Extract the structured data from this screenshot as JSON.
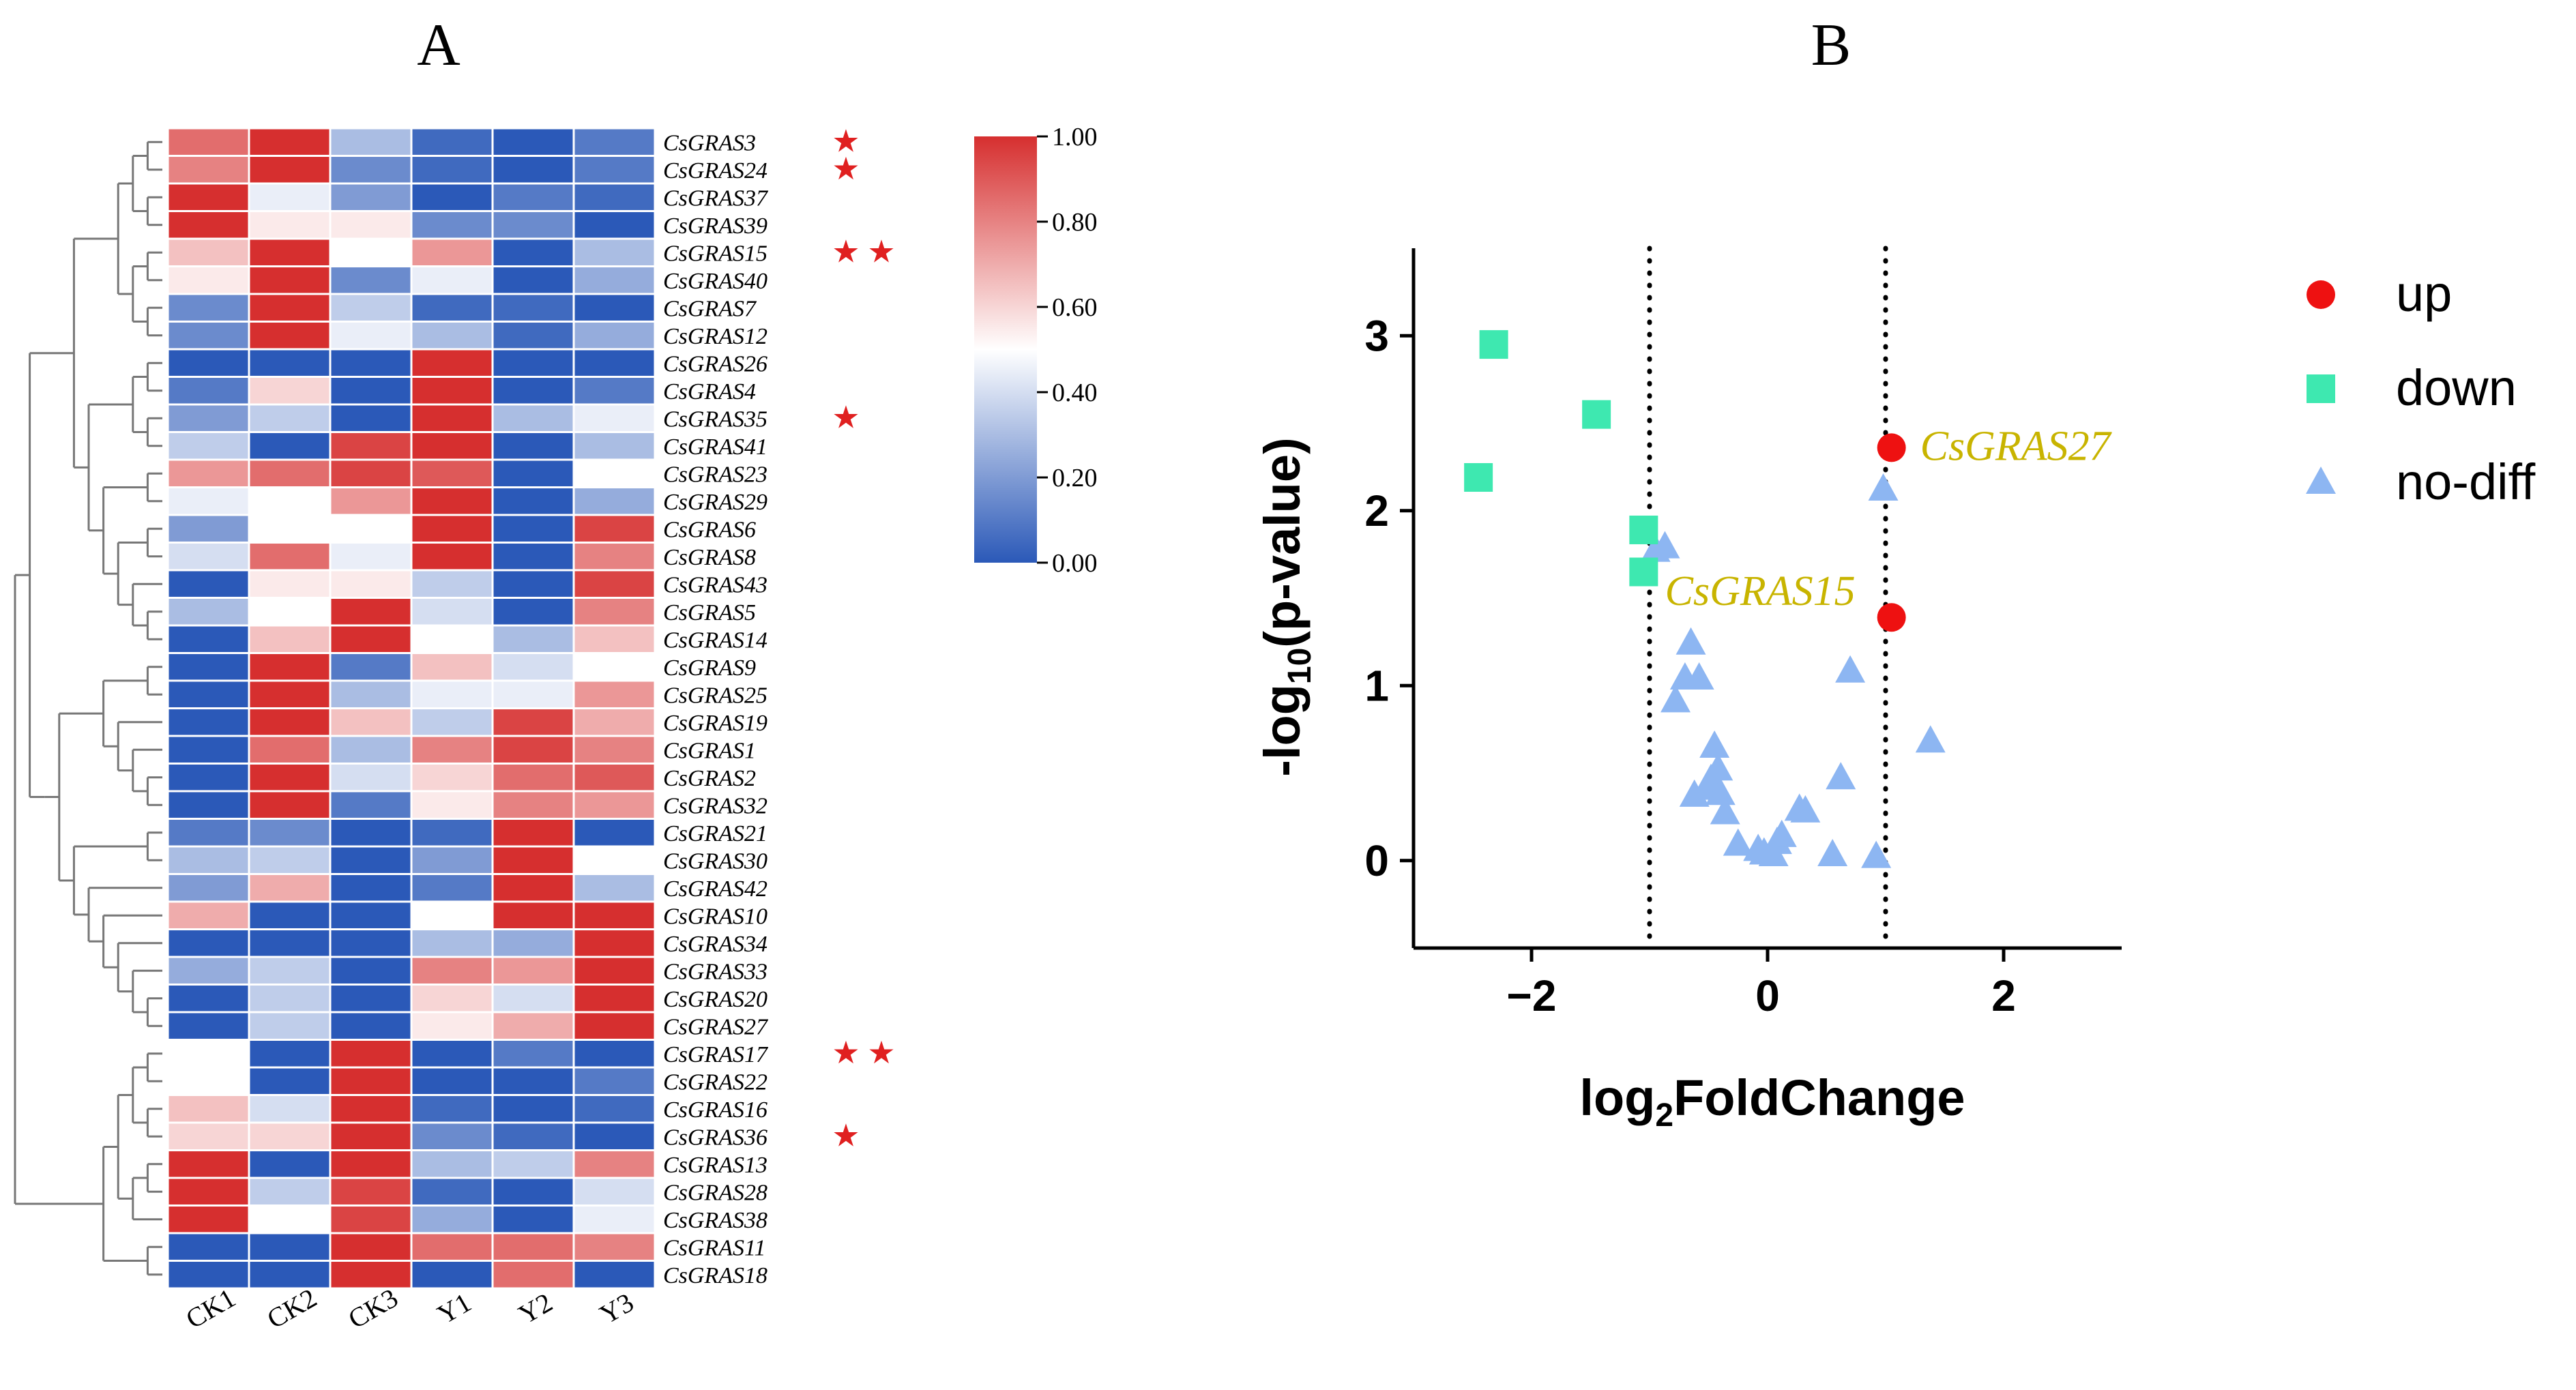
{
  "chart_data": [
    {
      "type": "heatmap",
      "panel_label": "A",
      "columns": [
        "CK1",
        "CK2",
        "CK3",
        "Y1",
        "Y2",
        "Y3"
      ],
      "rows": [
        "CsGRAS3",
        "CsGRAS24",
        "CsGRAS37",
        "CsGRAS39",
        "CsGRAS15",
        "CsGRAS40",
        "CsGRAS7",
        "CsGRAS12",
        "CsGRAS26",
        "CsGRAS4",
        "CsGRAS35",
        "CsGRAS41",
        "CsGRAS23",
        "CsGRAS29",
        "CsGRAS6",
        "CsGRAS8",
        "CsGRAS43",
        "CsGRAS5",
        "CsGRAS14",
        "CsGRAS9",
        "CsGRAS25",
        "CsGRAS19",
        "CsGRAS1",
        "CsGRAS2",
        "CsGRAS32",
        "CsGRAS21",
        "CsGRAS30",
        "CsGRAS42",
        "CsGRAS10",
        "CsGRAS34",
        "CsGRAS33",
        "CsGRAS20",
        "CsGRAS27",
        "CsGRAS17",
        "CsGRAS22",
        "CsGRAS16",
        "CsGRAS36",
        "CsGRAS13",
        "CsGRAS28",
        "CsGRAS38",
        "CsGRAS11",
        "CsGRAS18"
      ],
      "values": [
        [
          0.85,
          1.0,
          0.3,
          0.05,
          0.0,
          0.1
        ],
        [
          0.8,
          1.0,
          0.15,
          0.05,
          0.0,
          0.1
        ],
        [
          1.0,
          0.45,
          0.2,
          0.0,
          0.1,
          0.05
        ],
        [
          1.0,
          0.55,
          0.55,
          0.15,
          0.15,
          0.0
        ],
        [
          0.65,
          1.0,
          0.5,
          0.75,
          0.0,
          0.3
        ],
        [
          0.55,
          1.0,
          0.15,
          0.45,
          0.0,
          0.25
        ],
        [
          0.15,
          1.0,
          0.35,
          0.05,
          0.05,
          0.0
        ],
        [
          0.15,
          1.0,
          0.45,
          0.3,
          0.05,
          0.25
        ],
        [
          0.0,
          0.0,
          0.0,
          1.0,
          0.0,
          0.0
        ],
        [
          0.1,
          0.6,
          0.0,
          1.0,
          0.0,
          0.1
        ],
        [
          0.2,
          0.35,
          0.0,
          1.0,
          0.3,
          0.45
        ],
        [
          0.35,
          0.0,
          0.95,
          1.0,
          0.0,
          0.3
        ],
        [
          0.75,
          0.85,
          0.95,
          0.9,
          0.0,
          0.5
        ],
        [
          0.45,
          0.5,
          0.75,
          1.0,
          0.0,
          0.25
        ],
        [
          0.2,
          0.5,
          0.5,
          1.0,
          0.0,
          0.95
        ],
        [
          0.4,
          0.85,
          0.45,
          1.0,
          0.0,
          0.8
        ],
        [
          0.0,
          0.55,
          0.55,
          0.35,
          0.0,
          0.95
        ],
        [
          0.3,
          0.5,
          1.0,
          0.4,
          0.0,
          0.8
        ],
        [
          0.0,
          0.65,
          1.0,
          0.5,
          0.3,
          0.65
        ],
        [
          0.0,
          1.0,
          0.1,
          0.65,
          0.4,
          0.5
        ],
        [
          0.0,
          1.0,
          0.3,
          0.45,
          0.45,
          0.75
        ],
        [
          0.0,
          1.0,
          0.65,
          0.35,
          0.95,
          0.7
        ],
        [
          0.0,
          0.85,
          0.3,
          0.8,
          0.95,
          0.8
        ],
        [
          0.0,
          1.0,
          0.4,
          0.6,
          0.85,
          0.9
        ],
        [
          0.0,
          1.0,
          0.1,
          0.55,
          0.8,
          0.75
        ],
        [
          0.1,
          0.15,
          0.0,
          0.05,
          1.0,
          0.0
        ],
        [
          0.3,
          0.35,
          0.0,
          0.2,
          1.0,
          0.5
        ],
        [
          0.2,
          0.7,
          0.0,
          0.1,
          1.0,
          0.3
        ],
        [
          0.7,
          0.0,
          0.0,
          0.5,
          1.0,
          1.0
        ],
        [
          0.0,
          0.0,
          0.0,
          0.3,
          0.25,
          1.0
        ],
        [
          0.25,
          0.35,
          0.0,
          0.8,
          0.75,
          1.0
        ],
        [
          0.0,
          0.35,
          0.0,
          0.6,
          0.4,
          1.0
        ],
        [
          0.0,
          0.35,
          0.0,
          0.55,
          0.7,
          1.0
        ],
        [
          0.5,
          0.0,
          1.0,
          0.0,
          0.1,
          0.0
        ],
        [
          0.5,
          0.0,
          1.0,
          0.0,
          0.0,
          0.1
        ],
        [
          0.65,
          0.4,
          1.0,
          0.05,
          0.0,
          0.05
        ],
        [
          0.6,
          0.6,
          1.0,
          0.15,
          0.05,
          0.0
        ],
        [
          1.0,
          0.0,
          1.0,
          0.3,
          0.35,
          0.8
        ],
        [
          1.0,
          0.35,
          0.95,
          0.05,
          0.0,
          0.4
        ],
        [
          1.0,
          0.5,
          0.95,
          0.25,
          0.0,
          0.45
        ],
        [
          0.0,
          0.0,
          1.0,
          0.85,
          0.85,
          0.8
        ],
        [
          0.0,
          0.0,
          1.0,
          0.0,
          0.85,
          0.0
        ]
      ],
      "stars": {
        "CsGRAS3": 1,
        "CsGRAS24": 1,
        "CsGRAS15": 2,
        "CsGRAS35": 1,
        "CsGRAS17": 2,
        "CsGRAS36": 1
      },
      "colorbar": {
        "min": 0,
        "max": 1,
        "ticks": [
          "0.00",
          "0.20",
          "0.40",
          "0.60",
          "0.80",
          "1.00"
        ]
      },
      "colors": {
        "low": "#2b59b8",
        "mid": "#ffffff",
        "high": "#d62f2f",
        "star": "#e02020"
      }
    },
    {
      "type": "scatter",
      "panel_label": "B",
      "xlabel_base": "log",
      "xlabel_sub": "2",
      "xlabel_rest": "FoldChange",
      "ylabel_prefix": "-log",
      "ylabel_sub": "10",
      "ylabel_rest": "(p-value)",
      "xlim": [
        -3,
        3
      ],
      "ylim": [
        -0.5,
        3.5
      ],
      "xticks": [
        "-2",
        "0",
        "2"
      ],
      "yticks": [
        "0",
        "1",
        "2",
        "3"
      ],
      "threshold_lines_x": [
        -1,
        1
      ],
      "series": [
        {
          "name": "up",
          "marker": "circle",
          "color": "#ee1111",
          "points": [
            [
              1.05,
              2.36
            ],
            [
              1.05,
              1.39
            ]
          ]
        },
        {
          "name": "down",
          "marker": "square",
          "color": "#3ee8b0",
          "points": [
            [
              -2.32,
              2.95
            ],
            [
              -1.45,
              2.55
            ],
            [
              -2.45,
              2.19
            ],
            [
              -1.05,
              1.89
            ],
            [
              -1.05,
              1.65
            ]
          ]
        },
        {
          "name": "no-diff",
          "marker": "triangle",
          "color": "#8db6f2",
          "points": [
            [
              0.98,
              2.12
            ],
            [
              -0.87,
              1.79
            ],
            [
              -0.95,
              1.77
            ],
            [
              -0.65,
              1.24
            ],
            [
              -0.7,
              1.04
            ],
            [
              -0.58,
              1.04
            ],
            [
              -0.78,
              0.91
            ],
            [
              0.7,
              1.08
            ],
            [
              1.38,
              0.68
            ],
            [
              -0.45,
              0.65
            ],
            [
              -0.42,
              0.52
            ],
            [
              -0.48,
              0.46
            ],
            [
              -0.5,
              0.43
            ],
            [
              -0.52,
              0.41
            ],
            [
              0.62,
              0.47
            ],
            [
              -0.62,
              0.37
            ],
            [
              -0.4,
              0.38
            ],
            [
              -0.36,
              0.27
            ],
            [
              0.27,
              0.29
            ],
            [
              0.32,
              0.28
            ],
            [
              -0.25,
              0.09
            ],
            [
              0.08,
              0.1
            ],
            [
              0.12,
              0.14
            ],
            [
              -0.08,
              0.06
            ],
            [
              -0.03,
              0.04
            ],
            [
              0.05,
              0.03
            ],
            [
              0.55,
              0.03
            ],
            [
              0.92,
              0.02
            ]
          ]
        }
      ],
      "annotations": [
        {
          "text": "CsGRAS27",
          "x": 1.05,
          "y": 2.36,
          "color": "#c8b400"
        },
        {
          "text": "CsGRAS15",
          "x": 1.05,
          "y": 1.39,
          "color": "#c8b400"
        }
      ]
    }
  ]
}
